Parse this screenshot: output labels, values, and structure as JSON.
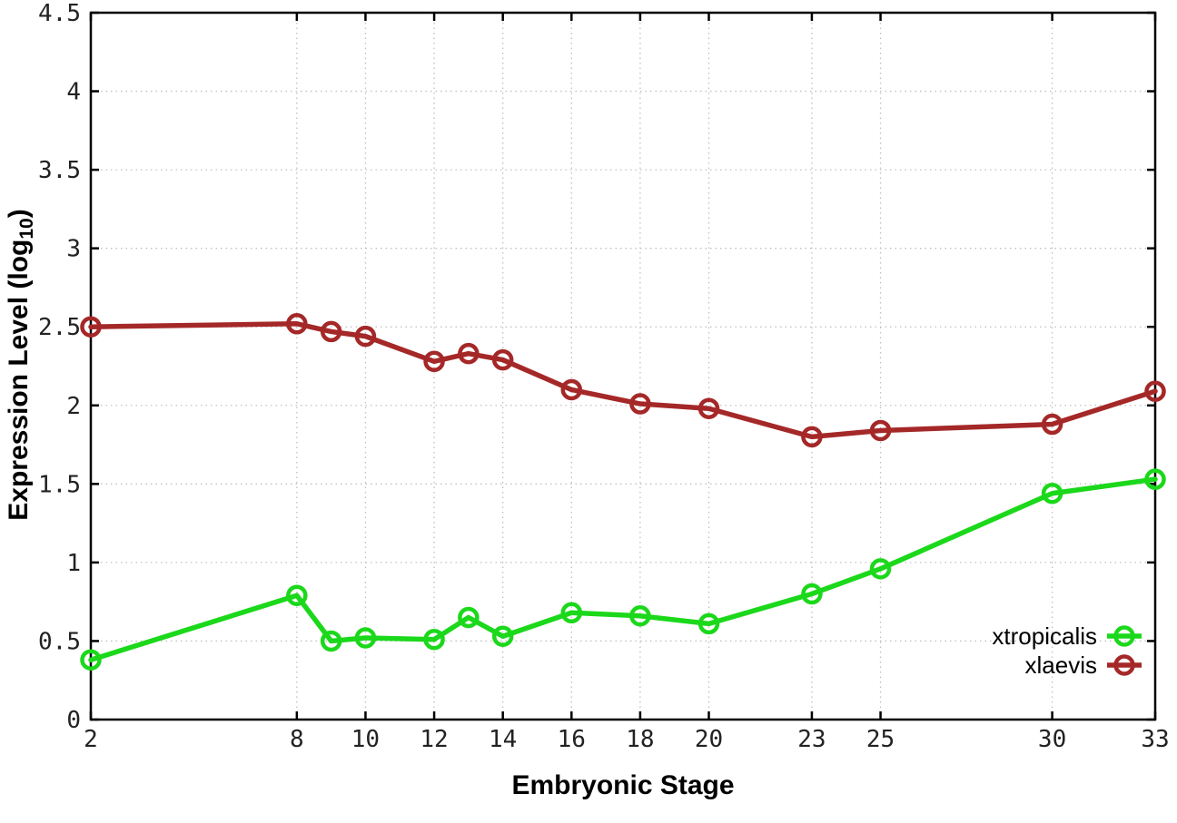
{
  "chart_data": {
    "type": "line",
    "title": "",
    "xlabel": "Embryonic Stage",
    "ylabel": "Expression Level (log10)",
    "ylabel_parts": {
      "main": "Expression Level (log",
      "sub": "10",
      "end": ")"
    },
    "xlim": [
      2,
      33
    ],
    "ylim": [
      0,
      4.5
    ],
    "grid": true,
    "x_ticks": [
      2,
      8,
      10,
      12,
      14,
      16,
      18,
      20,
      23,
      25,
      30,
      33
    ],
    "y_ticks": [
      0,
      0.5,
      1,
      1.5,
      2,
      2.5,
      3,
      3.5,
      4,
      4.5
    ],
    "y_tick_labels": [
      "0",
      "0.5",
      "1",
      "1.5",
      "2",
      "2.5",
      "3",
      "3.5",
      "4",
      "4.5"
    ],
    "x": [
      2,
      8,
      9,
      10,
      12,
      13,
      14,
      16,
      18,
      20,
      23,
      25,
      30,
      33
    ],
    "legend_position": "inside-bottom-right",
    "series": [
      {
        "name": "xtropicalis",
        "color": "#1bd81b",
        "values": [
          0.38,
          0.79,
          0.5,
          0.52,
          0.51,
          0.65,
          0.53,
          0.68,
          0.66,
          0.61,
          0.8,
          0.96,
          1.44,
          1.53
        ]
      },
      {
        "name": "xlaevis",
        "color": "#a52828",
        "values": [
          2.5,
          2.52,
          2.47,
          2.44,
          2.28,
          2.33,
          2.29,
          2.1,
          2.01,
          1.98,
          1.8,
          1.84,
          1.88,
          2.09
        ]
      }
    ],
    "colors": {
      "grid": "#c0c0c0",
      "axis": "#000000",
      "tick_label": "#222222",
      "legend_text": "#000000"
    }
  }
}
